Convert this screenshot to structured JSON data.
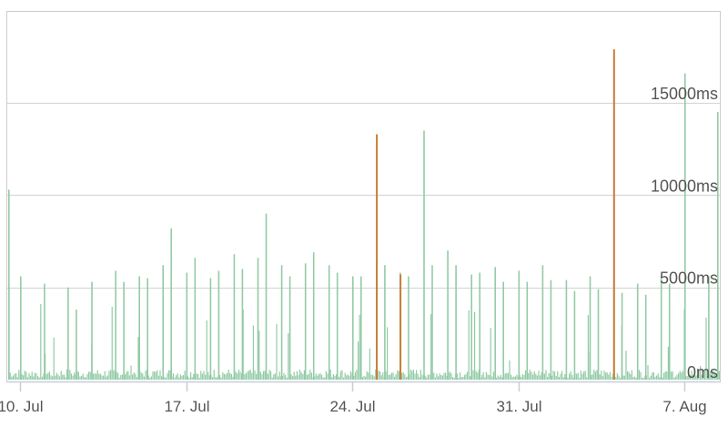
{
  "chart_data": {
    "type": "bar",
    "title": "",
    "xlabel": "",
    "ylabel": "",
    "ylim": [
      0,
      20000
    ],
    "y_unit": "ms",
    "y_ticks": [
      {
        "value": 0,
        "label": "0ms"
      },
      {
        "value": 5000,
        "label": "5000ms"
      },
      {
        "value": 10000,
        "label": "10000ms"
      },
      {
        "value": 15000,
        "label": "15000ms"
      }
    ],
    "x_range": [
      "2023-07-08",
      "2023-08-10"
    ],
    "x_ticks": [
      {
        "date": "2023-07-10",
        "label": "10. Jul"
      },
      {
        "date": "2023-07-17",
        "label": "17. Jul"
      },
      {
        "date": "2023-07-24",
        "label": "24. Jul"
      },
      {
        "date": "2023-07-31",
        "label": "31. Jul"
      },
      {
        "date": "2023-08-07",
        "label": "7. Aug"
      }
    ],
    "grid": true,
    "colors": {
      "primary": "#93cba6",
      "secondary": "#c87d37",
      "grid": "#d8d8d8",
      "axis": "#c8cdd8",
      "frame": "#cccccc",
      "text": "#555555"
    },
    "series": [
      {
        "color": "#93cba6",
        "points": [
          [
            "2023-07-08",
            10300
          ],
          [
            "2023-07-09",
            5100
          ],
          [
            "2023-07-10",
            5600
          ],
          [
            "2023-07-11",
            5200
          ],
          [
            "2023-07-12",
            5000
          ],
          [
            "2023-07-12",
            3800
          ],
          [
            "2023-07-13",
            5300
          ],
          [
            "2023-07-14",
            5900
          ],
          [
            "2023-07-14",
            5300
          ],
          [
            "2023-07-15",
            5600
          ],
          [
            "2023-07-15",
            5500
          ],
          [
            "2023-07-16",
            6200
          ],
          [
            "2023-07-16",
            8200
          ],
          [
            "2023-07-17",
            5800
          ],
          [
            "2023-07-17",
            6600
          ],
          [
            "2023-07-18",
            5500
          ],
          [
            "2023-07-18",
            5900
          ],
          [
            "2023-07-19",
            6800
          ],
          [
            "2023-07-19",
            6000
          ],
          [
            "2023-07-20",
            6600
          ],
          [
            "2023-07-20",
            9000
          ],
          [
            "2023-07-21",
            6200
          ],
          [
            "2023-07-21",
            5600
          ],
          [
            "2023-07-22",
            6300
          ],
          [
            "2023-07-22",
            6900
          ],
          [
            "2023-07-23",
            6200
          ],
          [
            "2023-07-23",
            5800
          ],
          [
            "2023-07-24",
            5600
          ],
          [
            "2023-07-24",
            5600
          ],
          [
            "2023-07-25",
            6500
          ],
          [
            "2023-07-25",
            6200
          ],
          [
            "2023-07-26",
            5800
          ],
          [
            "2023-07-26",
            5600
          ],
          [
            "2023-07-27",
            13500
          ],
          [
            "2023-07-27",
            6200
          ],
          [
            "2023-07-28",
            7000
          ],
          [
            "2023-07-28",
            6200
          ],
          [
            "2023-07-29",
            5700
          ],
          [
            "2023-07-29",
            5800
          ],
          [
            "2023-07-30",
            6100
          ],
          [
            "2023-07-30",
            5300
          ],
          [
            "2023-07-31",
            5900
          ],
          [
            "2023-07-31",
            5300
          ],
          [
            "2023-08-01",
            6200
          ],
          [
            "2023-08-01",
            5400
          ],
          [
            "2023-08-02",
            5400
          ],
          [
            "2023-08-02",
            4800
          ],
          [
            "2023-08-03",
            5600
          ],
          [
            "2023-08-03",
            4900
          ],
          [
            "2023-08-04",
            5300
          ],
          [
            "2023-08-04",
            4700
          ],
          [
            "2023-08-05",
            5200
          ],
          [
            "2023-08-05",
            4600
          ],
          [
            "2023-08-06",
            5600
          ],
          [
            "2023-08-06",
            5200
          ],
          [
            "2023-08-07",
            16600
          ],
          [
            "2023-08-08",
            5600
          ],
          [
            "2023-08-09",
            5200
          ],
          [
            "2023-08-10",
            14500
          ]
        ]
      },
      {
        "color": "#c87d37",
        "points": [
          [
            "2023-07-25",
            13300
          ],
          [
            "2023-07-26",
            5700
          ],
          [
            "2023-08-04",
            17900
          ]
        ]
      }
    ]
  }
}
